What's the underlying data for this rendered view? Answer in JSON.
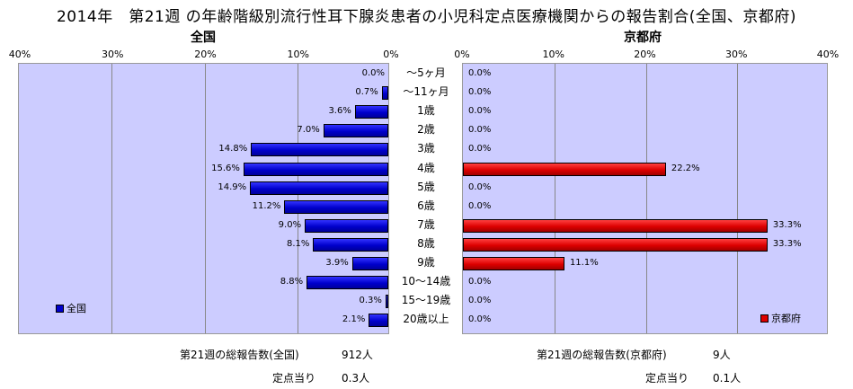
{
  "title": "2014年　第21週 の年齢階級別流行性耳下腺炎患者の小児科定点医療機関からの報告割合(全国、京都府)",
  "colors": {
    "left_bar": "#0000cc",
    "right_bar": "#dd0000",
    "plot_bg": "#ccccff"
  },
  "chart_data": [
    {
      "type": "bar",
      "orientation": "horizontal-reversed",
      "title": "全国",
      "legend": "全国",
      "legend_position": "bottom-left",
      "grid": true,
      "xlim": [
        0,
        40
      ],
      "ticks": [
        "40%",
        "30%",
        "20%",
        "10%",
        "0%"
      ],
      "categories": [
        "～5ヶ月",
        "～11ヶ月",
        "1歳",
        "2歳",
        "3歳",
        "4歳",
        "5歳",
        "6歳",
        "7歳",
        "8歳",
        "9歳",
        "10～14歳",
        "15～19歳",
        "20歳以上"
      ],
      "values": [
        0.0,
        0.7,
        3.6,
        7.0,
        14.8,
        15.6,
        14.9,
        11.2,
        9.0,
        8.1,
        3.9,
        8.8,
        0.3,
        2.1
      ],
      "labels": [
        "0.0%",
        "0.7%",
        "3.6%",
        "7.0%",
        "14.8%",
        "15.6%",
        "14.9%",
        "11.2%",
        "9.0%",
        "8.1%",
        "3.9%",
        "8.8%",
        "0.3%",
        "2.1%"
      ]
    },
    {
      "type": "bar",
      "orientation": "horizontal",
      "title": "京都府",
      "legend": "京都府",
      "legend_position": "bottom-right",
      "grid": true,
      "xlim": [
        0,
        40
      ],
      "ticks": [
        "0%",
        "10%",
        "20%",
        "30%",
        "40%"
      ],
      "categories": [
        "～5ヶ月",
        "～11ヶ月",
        "1歳",
        "2歳",
        "3歳",
        "4歳",
        "5歳",
        "6歳",
        "7歳",
        "8歳",
        "9歳",
        "10～14歳",
        "15～19歳",
        "20歳以上"
      ],
      "values": [
        0.0,
        0.0,
        0.0,
        0.0,
        0.0,
        22.2,
        0.0,
        0.0,
        33.3,
        33.3,
        11.1,
        0.0,
        0.0,
        0.0
      ],
      "labels": [
        "0.0%",
        "0.0%",
        "0.0%",
        "0.0%",
        "0.0%",
        "22.2%",
        "0.0%",
        "0.0%",
        "33.3%",
        "33.3%",
        "11.1%",
        "0.0%",
        "0.0%",
        "0.0%"
      ]
    }
  ],
  "footer": {
    "left_total_label": "第21週の総報告数(全国)",
    "left_total_value": "912人",
    "left_per_label": "定点当り",
    "left_per_value": "0.3人",
    "right_total_label": "第21週の総報告数(京都府)",
    "right_total_value": "9人",
    "right_per_label": "定点当り",
    "right_per_value": "0.1人"
  }
}
